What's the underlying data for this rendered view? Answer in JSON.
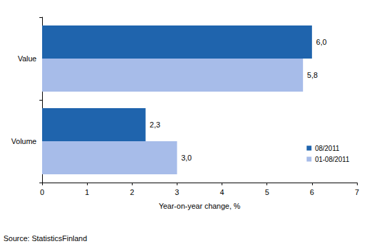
{
  "chart_data": {
    "type": "bar",
    "orientation": "horizontal",
    "categories": [
      "Value",
      "Volume"
    ],
    "series": [
      {
        "name": "08/2011",
        "color": "#1f64ad",
        "values": [
          6.0,
          2.3
        ],
        "value_labels": [
          "6,0",
          "2,3"
        ]
      },
      {
        "name": "01-08/2011",
        "color": "#a7bce9",
        "values": [
          5.8,
          3.0
        ],
        "value_labels": [
          "5,8",
          "3,0"
        ]
      }
    ],
    "x_label": "Year-on-year change, %",
    "xlim": [
      0,
      7
    ],
    "xticks": [
      0,
      1,
      2,
      3,
      4,
      5,
      6,
      7
    ],
    "grid": false,
    "legend": "lower right",
    "data_labels": true,
    "source": "Source: StatisticsFinland"
  }
}
